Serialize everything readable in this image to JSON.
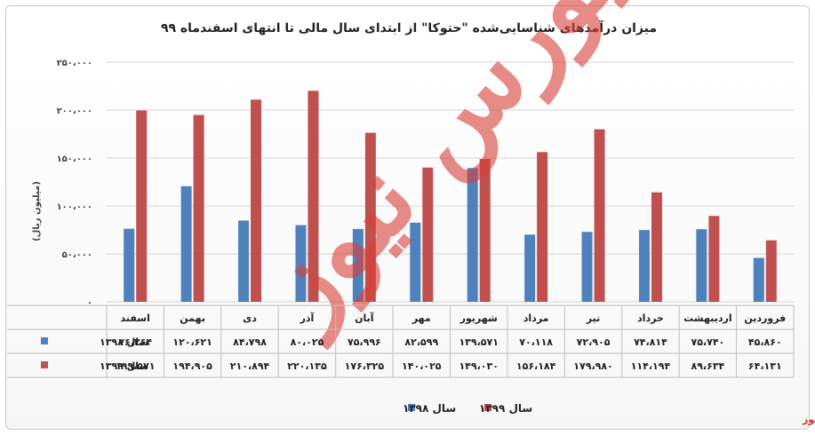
{
  "chart_data": {
    "type": "bar",
    "title": "میزان درآمدهای شناسایی‌شده \"حتوکا\" از ابتدای سال مالی تا انتهای اسفندماه ۹۹",
    "ylabel": "(میلیون ریال)",
    "ylim": [
      0,
      250000
    ],
    "yticks": [
      0,
      50000,
      100000,
      150000,
      200000,
      250000
    ],
    "ytick_labels": [
      "۰",
      "۵۰،۰۰۰",
      "۱۰۰،۰۰۰",
      "۱۵۰،۰۰۰",
      "۲۰۰،۰۰۰",
      "۲۵۰،۰۰۰"
    ],
    "categories": [
      "اسفند",
      "بهمن",
      "دی",
      "آذر",
      "آبان",
      "مهر",
      "شهریور",
      "مرداد",
      "تیر",
      "خرداد",
      "اردیبهشت",
      "فروردین"
    ],
    "series": [
      {
        "name": "سال ۱۳۹۸",
        "color": "#4f81bd",
        "values": [
          76264,
          120621,
          84798,
          80025,
          75996,
          82599,
          139571,
          70118,
          72905,
          74814,
          75740,
          45860
        ],
        "labels": [
          "۷۶،۲۶۴",
          "۱۲۰،۶۲۱",
          "۸۴،۷۹۸",
          "۸۰،۰۲۵",
          "۷۵،۹۹۶",
          "۸۲،۵۹۹",
          "۱۳۹،۵۷۱",
          "۷۰،۱۱۸",
          "۷۲،۹۰۵",
          "۷۴،۸۱۴",
          "۷۵،۷۴۰",
          "۴۵،۸۶۰"
        ]
      },
      {
        "name": "سال ۱۳۹۹",
        "color": "#c0504d",
        "values": [
          199571,
          194905,
          210894,
          220135,
          176325,
          140025,
          149030,
          156184,
          179980,
          114194,
          89634,
          64131
        ],
        "labels": [
          "۱۹۹،۵۷۱",
          "۱۹۴،۹۰۵",
          "۲۱۰،۸۹۴",
          "۲۲۰،۱۳۵",
          "۱۷۶،۳۲۵",
          "۱۴۰،۰۲۵",
          "۱۴۹،۰۳۰",
          "۱۵۶،۱۸۴",
          "۱۷۹،۹۸۰",
          "۱۱۴،۱۹۴",
          "۸۹،۶۳۴",
          "۶۴،۱۳۱"
        ]
      }
    ],
    "grid": true,
    "legend_position": "bottom-center",
    "data_table": true
  },
  "watermark": "بورس نیوز",
  "source": "بورس نیوز"
}
